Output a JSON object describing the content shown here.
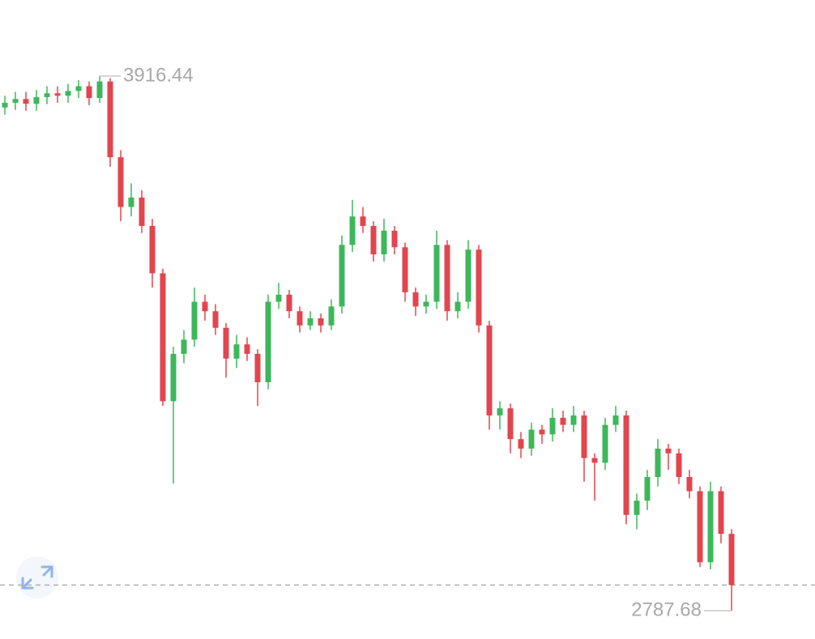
{
  "chart_data": {
    "type": "candlestick",
    "up_color": "#3db75b",
    "down_color": "#e2454e",
    "ylim": [
      2728,
      4077
    ],
    "open": [
      3850,
      3860,
      3868,
      3858,
      3872,
      3880,
      3875,
      3885,
      3895,
      3870,
      3905,
      3745,
      3640,
      3660,
      3600,
      3500,
      3230,
      3330,
      3360,
      3440,
      3420,
      3385,
      3320,
      3350,
      3330,
      3270,
      3440,
      3455,
      3420,
      3390,
      3405,
      3390,
      3430,
      3560,
      3620,
      3600,
      3540,
      3590,
      3555,
      3460,
      3430,
      3440,
      3560,
      3420,
      3440,
      3550,
      3390,
      3200,
      3215,
      3150,
      3130,
      3170,
      3160,
      3195,
      3180,
      3200,
      3110,
      3100,
      3180,
      3200,
      2990,
      3020,
      3070,
      3130,
      3120,
      3070,
      3040,
      2890,
      3040,
      2950
    ],
    "high": [
      3875,
      3883,
      3883,
      3887,
      3895,
      3895,
      3900,
      3908,
      3905,
      3916.44,
      3912,
      3760,
      3690,
      3675,
      3615,
      3510,
      3345,
      3380,
      3470,
      3455,
      3435,
      3395,
      3370,
      3365,
      3340,
      3455,
      3480,
      3465,
      3430,
      3420,
      3415,
      3445,
      3580,
      3655,
      3640,
      3610,
      3615,
      3600,
      3565,
      3470,
      3455,
      3590,
      3570,
      3460,
      3570,
      3560,
      3400,
      3230,
      3225,
      3165,
      3185,
      3180,
      3215,
      3210,
      3220,
      3210,
      3120,
      3195,
      3220,
      3210,
      3035,
      3085,
      3150,
      3140,
      3130,
      3085,
      3050,
      3060,
      3050,
      2960
    ],
    "low": [
      3835,
      3845,
      3843,
      3843,
      3857,
      3860,
      3860,
      3870,
      3855,
      3860,
      3725,
      3610,
      3620,
      3585,
      3470,
      3220,
      3056,
      3310,
      3345,
      3400,
      3370,
      3280,
      3300,
      3315,
      3220,
      3255,
      3425,
      3405,
      3375,
      3380,
      3375,
      3380,
      3415,
      3545,
      3585,
      3525,
      3525,
      3540,
      3440,
      3410,
      3415,
      3425,
      3400,
      3405,
      3425,
      3375,
      3170,
      3170,
      3120,
      3110,
      3115,
      3140,
      3145,
      3165,
      3165,
      3060,
      3020,
      3085,
      3165,
      2970,
      2960,
      3000,
      3050,
      3085,
      3055,
      3025,
      2880,
      2875,
      2930,
      2787.68
    ],
    "close": [
      3860,
      3868,
      3858,
      3872,
      3880,
      3875,
      3885,
      3895,
      3870,
      3905,
      3745,
      3640,
      3660,
      3600,
      3500,
      3230,
      3330,
      3360,
      3440,
      3420,
      3385,
      3320,
      3350,
      3330,
      3270,
      3440,
      3455,
      3420,
      3390,
      3405,
      3390,
      3430,
      3560,
      3620,
      3600,
      3540,
      3590,
      3555,
      3460,
      3430,
      3440,
      3560,
      3420,
      3440,
      3550,
      3390,
      3200,
      3215,
      3150,
      3130,
      3170,
      3160,
      3195,
      3180,
      3200,
      3110,
      3100,
      3180,
      3200,
      2990,
      3020,
      3070,
      3130,
      3120,
      3070,
      3040,
      2890,
      3040,
      2950,
      2842
    ],
    "max_label": 3916.44,
    "min_label": 2787.68
  }
}
